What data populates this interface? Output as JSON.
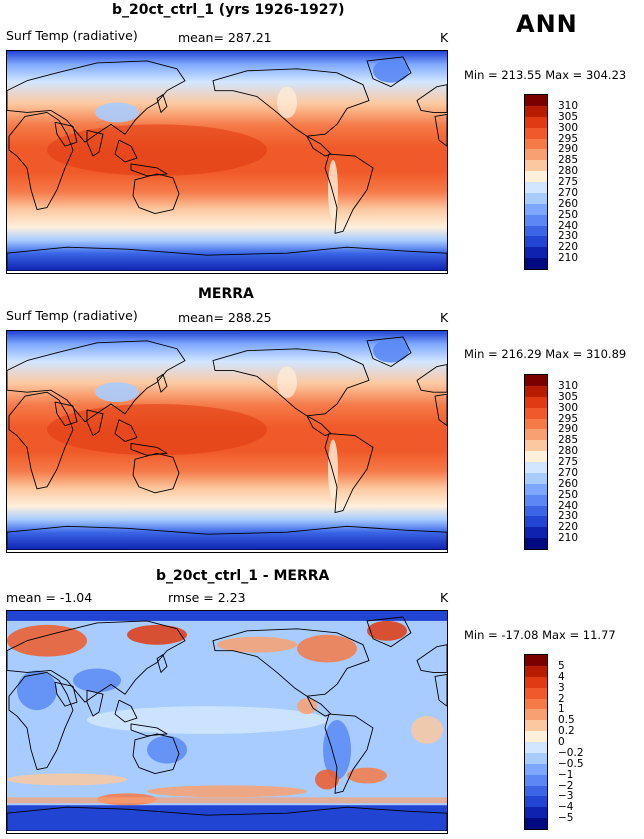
{
  "season": "ANN",
  "panels": [
    {
      "title": "b_20ct_ctrl_1 (yrs 1926-1927)",
      "left_label": "Surf Temp (radiative)",
      "mid_label": "mean= 287.21",
      "unit": "K",
      "stats": "Min = 213.55 Max = 304.23",
      "colorbar_labels": [
        "310",
        "305",
        "300",
        "295",
        "290",
        "285",
        "280",
        "275",
        "270",
        "260",
        "250",
        "240",
        "230",
        "220",
        "210"
      ],
      "colors": [
        "#7a0000",
        "#b81c00",
        "#e03a10",
        "#f05a28",
        "#f57a48",
        "#f9a070",
        "#fcc8a0",
        "#fff0dc",
        "#d2e6ff",
        "#a8ccff",
        "#7ea8ff",
        "#5a88f5",
        "#3a66e6",
        "#2244d2",
        "#0e22b0",
        "#000a80"
      ],
      "kind": "temp"
    },
    {
      "title": "MERRA",
      "left_label": "Surf Temp (radiative)",
      "mid_label": "mean= 288.25",
      "unit": "K",
      "stats": "Min = 216.29 Max = 310.89",
      "colorbar_labels": [
        "310",
        "305",
        "300",
        "295",
        "290",
        "285",
        "280",
        "275",
        "270",
        "260",
        "250",
        "240",
        "230",
        "220",
        "210"
      ],
      "colors": [
        "#7a0000",
        "#b81c00",
        "#e03a10",
        "#f05a28",
        "#f57a48",
        "#f9a070",
        "#fcc8a0",
        "#fff0dc",
        "#d2e6ff",
        "#a8ccff",
        "#7ea8ff",
        "#5a88f5",
        "#3a66e6",
        "#2244d2",
        "#0e22b0",
        "#000a80"
      ],
      "kind": "temp"
    },
    {
      "title": "b_20ct_ctrl_1 - MERRA",
      "left_label": "mean =   -1.04",
      "mid_label": "rmse =    2.23",
      "unit": "K",
      "stats": "Min = -17.08 Max =  11.77",
      "colorbar_labels": [
        "5",
        "4",
        "3",
        "2",
        "1",
        "0.5",
        "0.2",
        "0",
        "−0.2",
        "−0.5",
        "−1",
        "−2",
        "−3",
        "−4",
        "−5"
      ],
      "colors": [
        "#7a0000",
        "#b81c00",
        "#e03a10",
        "#f05a28",
        "#f57a48",
        "#f9a070",
        "#fcc8a0",
        "#fff0dc",
        "#d2e6ff",
        "#a8ccff",
        "#7ea8ff",
        "#5a88f5",
        "#3a66e6",
        "#2244d2",
        "#0e22b0",
        "#000a80"
      ],
      "kind": "diff"
    }
  ]
}
